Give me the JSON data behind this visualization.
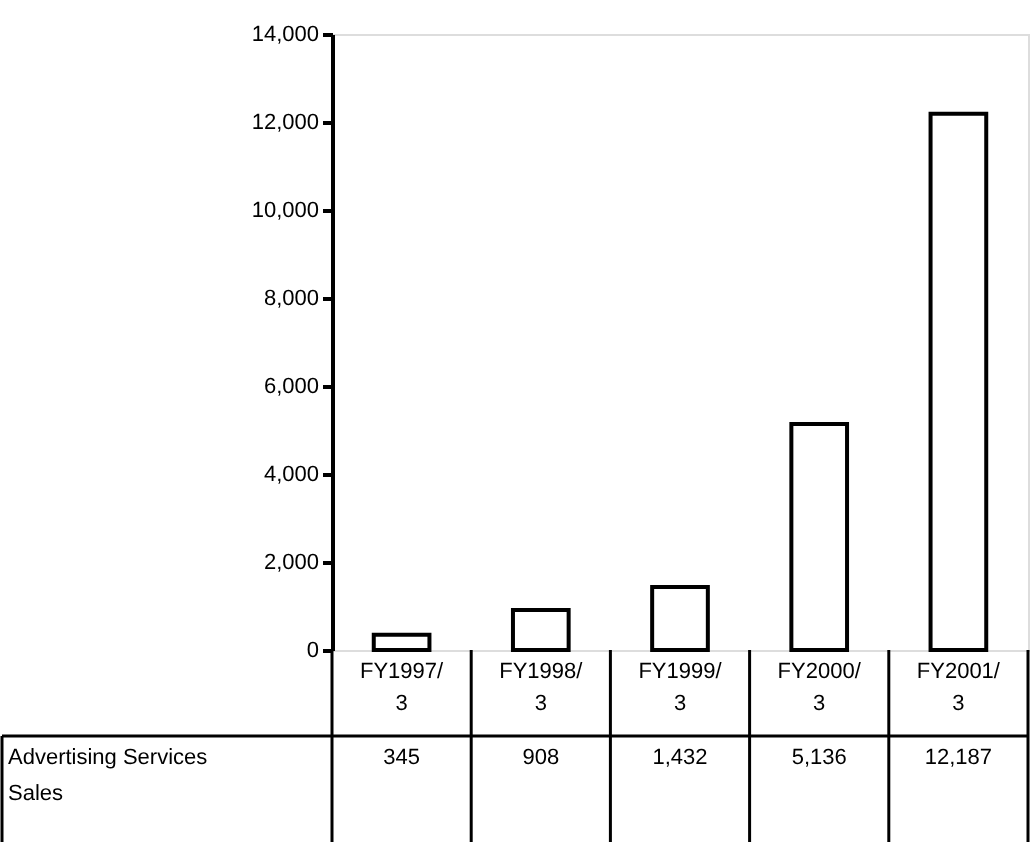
{
  "chart_data": {
    "type": "bar",
    "categories": [
      "FY1997/3",
      "FY1998/3",
      "FY1999/3",
      "FY2000/3",
      "FY2001/3"
    ],
    "series": [
      {
        "name": "Advertising Services Sales",
        "color": "#ffffff",
        "values": [
          345,
          908,
          1432,
          5136,
          12187
        ],
        "value_labels": [
          "345",
          "908",
          "1,432",
          "5,136",
          "12,187"
        ]
      }
    ],
    "ylim": [
      0,
      14000
    ],
    "yticks": [
      0,
      {
        "value": 2000,
        "label": "2,000"
      },
      {
        "value": 4000,
        "label": "4,000"
      },
      {
        "value": 6000,
        "label": "6,000"
      },
      {
        "value": 8000,
        "label": "8,000"
      },
      {
        "value": 10000,
        "label": "10,000"
      },
      {
        "value": 12000,
        "label": "12,000"
      },
      {
        "value": 14000,
        "label": "14,000"
      }
    ],
    "grid": false
  }
}
